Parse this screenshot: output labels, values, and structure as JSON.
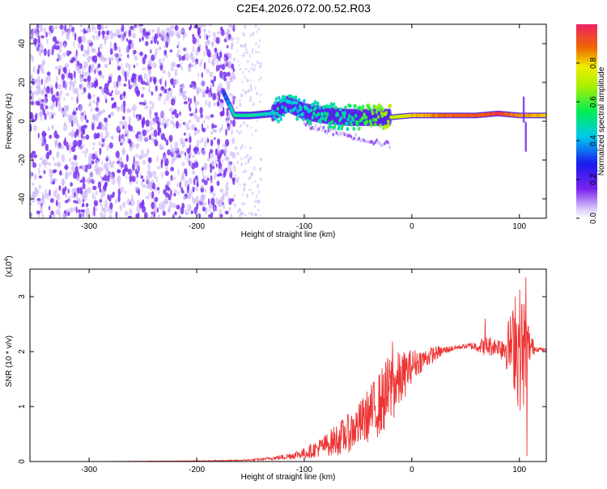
{
  "title": "C2E4.2026.072.00.52.R03",
  "colors": {
    "snr_line": "#ee3333",
    "scatter_main": "#7a33ee",
    "scatter_light": "#c8b3f6"
  },
  "chart_data": [
    {
      "type": "heatmap",
      "title": "C2E4.2026.072.00.52.R03",
      "xlabel": "Height of straight line (km)",
      "ylabel": "Frequency (Hz)",
      "xlim": [
        -355,
        125
      ],
      "ylim": [
        -50,
        50
      ],
      "x_ticks": [
        -300,
        -200,
        -100,
        0,
        100
      ],
      "y_ticks": [
        -40,
        -20,
        0,
        20,
        40
      ],
      "x_tick_labels": [
        "-300",
        "-200",
        "-100",
        "0",
        "100"
      ],
      "y_tick_labels": [
        "-40",
        "-20",
        "0",
        "20",
        "40"
      ],
      "grid": false,
      "colorbar": {
        "label": "Normalized spectral amplitude",
        "range": [
          0,
          1
        ],
        "ticks": [
          0.0,
          0.2,
          0.4,
          0.6,
          0.8
        ],
        "tick_labels": [
          "0.0",
          "0.2",
          "0.4",
          "0.6",
          "0.8"
        ],
        "colormap": "rainbow"
      },
      "regions": [
        {
          "x_range": [
            -355,
            -165
          ],
          "freq_range": [
            -50,
            50
          ],
          "amplitude": 0.1,
          "description": "noise"
        },
        {
          "x_range": [
            -165,
            -140
          ],
          "freq_range": [
            -50,
            50
          ],
          "amplitude": 0.02,
          "description": "sparse noise"
        }
      ],
      "carrier_track": [
        {
          "x": -175,
          "freq": 15,
          "amplitude": 0.3
        },
        {
          "x": -165,
          "freq": 3,
          "amplitude": 0.5
        },
        {
          "x": -150,
          "freq": 3,
          "amplitude": 0.5
        },
        {
          "x": -130,
          "freq": 4,
          "amplitude": 0.45
        },
        {
          "x": -115,
          "freq": 9,
          "amplitude": 0.45
        },
        {
          "x": -100,
          "freq": 5,
          "amplitude": 0.45
        },
        {
          "x": -80,
          "freq": 3,
          "amplitude": 0.5
        },
        {
          "x": -60,
          "freq": 2,
          "amplitude": 0.5
        },
        {
          "x": -40,
          "freq": 2,
          "amplitude": 0.6
        },
        {
          "x": -20,
          "freq": 2,
          "amplitude": 0.7
        },
        {
          "x": 0,
          "freq": 3,
          "amplitude": 0.8
        },
        {
          "x": 20,
          "freq": 3,
          "amplitude": 0.85
        },
        {
          "x": 40,
          "freq": 3,
          "amplitude": 0.9
        },
        {
          "x": 60,
          "freq": 3,
          "amplitude": 0.9
        },
        {
          "x": 80,
          "freq": 4,
          "amplitude": 0.95
        },
        {
          "x": 100,
          "freq": 3,
          "amplitude": 0.85
        },
        {
          "x": 125,
          "freq": 3,
          "amplitude": 0.8
        }
      ]
    },
    {
      "type": "line",
      "xlabel": "Height of straight line (km)",
      "ylabel": "SNR (10 * v/v)",
      "y_multiplier_label": "(x10",
      "y_multiplier_exponent": "4",
      "y_multiplier_close": ")",
      "xlim": [
        -355,
        125
      ],
      "ylim": [
        0,
        3.5
      ],
      "x_ticks": [
        -300,
        -200,
        -100,
        0,
        100
      ],
      "y_ticks": [
        0,
        1,
        2,
        3
      ],
      "x_tick_labels": [
        "-300",
        "-200",
        "-100",
        "0",
        "100"
      ],
      "y_tick_labels": [
        "0",
        "1",
        "2",
        "3"
      ],
      "grid": false,
      "series": [
        {
          "color": "#ee3333",
          "x": [
            -355,
            -300,
            -200,
            -160,
            -140,
            -120,
            -100,
            -90,
            -80,
            -70,
            -60,
            -50,
            -40,
            -30,
            -20,
            -10,
            0,
            10,
            20,
            30,
            40,
            50,
            60,
            70,
            80,
            90,
            95,
            100,
            105,
            110,
            115,
            125
          ],
          "mean": [
            0.0,
            0.0,
            0.01,
            0.02,
            0.04,
            0.08,
            0.15,
            0.22,
            0.3,
            0.4,
            0.5,
            0.65,
            0.85,
            1.05,
            1.3,
            1.5,
            1.75,
            1.85,
            1.95,
            2.02,
            2.07,
            2.1,
            2.1,
            2.1,
            2.1,
            2.1,
            2.1,
            2.05,
            2.0,
            2.1,
            2.05,
            2.03
          ],
          "spread": [
            0.0,
            0.0,
            0.005,
            0.01,
            0.02,
            0.05,
            0.1,
            0.15,
            0.2,
            0.3,
            0.35,
            0.4,
            0.5,
            0.6,
            0.7,
            0.5,
            0.3,
            0.2,
            0.15,
            0.08,
            0.05,
            0.04,
            0.1,
            0.2,
            0.15,
            0.5,
            0.8,
            1.2,
            1.0,
            0.3,
            0.05,
            0.02
          ],
          "peaks": [
            {
              "x": -18,
              "y": 2.18
            },
            {
              "x": 68,
              "y": 2.6
            },
            {
              "x": 96,
              "y": 3.0
            },
            {
              "x": 106,
              "y": 3.35
            },
            {
              "x": 107,
              "y": 0.1
            }
          ]
        }
      ]
    }
  ]
}
